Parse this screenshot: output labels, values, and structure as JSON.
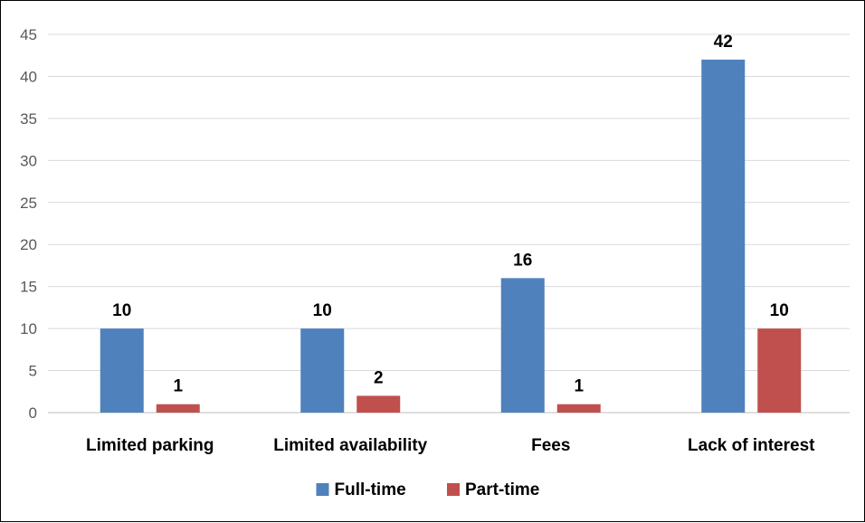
{
  "chart_data": {
    "type": "bar",
    "categories": [
      "Limited parking",
      "Limited availability",
      "Fees",
      "Lack of interest"
    ],
    "series": [
      {
        "name": "Full-time",
        "values": [
          10,
          10,
          16,
          42
        ],
        "color": "#4f81bd"
      },
      {
        "name": "Part-time",
        "values": [
          1,
          2,
          1,
          10
        ],
        "color": "#c0504d"
      }
    ],
    "title": "",
    "xlabel": "",
    "ylabel": "",
    "ylim": [
      0,
      45
    ],
    "yticks": [
      0,
      5,
      10,
      15,
      20,
      25,
      30,
      35,
      40,
      45
    ],
    "grid": true,
    "data_labels": true,
    "legend_position": "bottom"
  }
}
